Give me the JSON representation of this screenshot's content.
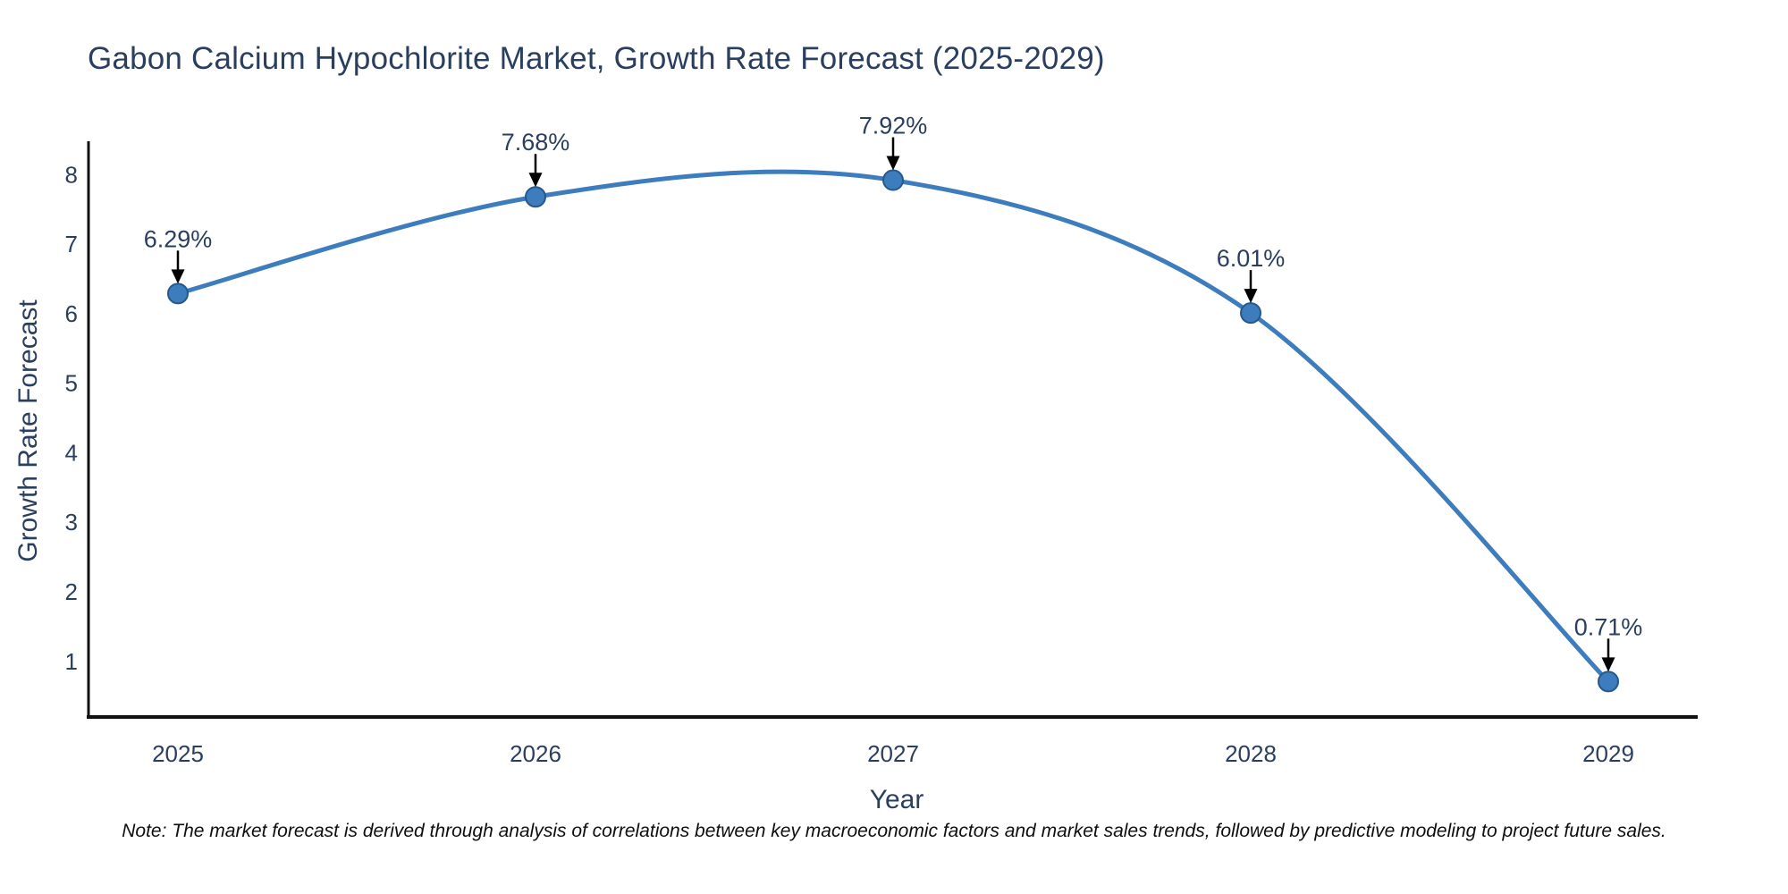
{
  "title": "Gabon Calcium Hypochlorite Market, Growth Rate Forecast (2025-2029)",
  "note": "Note: The market forecast is derived through analysis of correlations between key macroeconomic factors and market sales trends, followed by predictive modeling to project future sales.",
  "chart_data": {
    "type": "line",
    "title": "Gabon Calcium Hypochlorite Market, Growth Rate Forecast (2025-2029)",
    "xlabel": "Year",
    "ylabel": "Growth Rate Forecast",
    "x": [
      2025,
      2026,
      2027,
      2028,
      2029
    ],
    "values": [
      6.29,
      7.68,
      7.92,
      6.01,
      0.71
    ],
    "point_labels": [
      "6.29%",
      "7.68%",
      "7.92%",
      "6.01%",
      "0.71%"
    ],
    "xticks": [
      "2025",
      "2026",
      "2027",
      "2028",
      "2029"
    ],
    "yticks": [
      1,
      2,
      3,
      4,
      5,
      6,
      7,
      8
    ],
    "xlim": [
      2024.75,
      2029.25
    ],
    "ylim": [
      0.2,
      8.48
    ],
    "line_shape": "spline",
    "grid": false,
    "legend": "none",
    "annotations_have_arrows": true
  },
  "colors": {
    "line": "#3d7dbd",
    "marker_fill": "#3d7dbd",
    "marker_edge": "#25598c",
    "arrow": "#000000",
    "axis_line": "#111111",
    "tick_text": "#2a3f5f",
    "title_text": "#2a3f5f",
    "annotation_text": "#2a3f5f",
    "background": "#ffffff"
  }
}
